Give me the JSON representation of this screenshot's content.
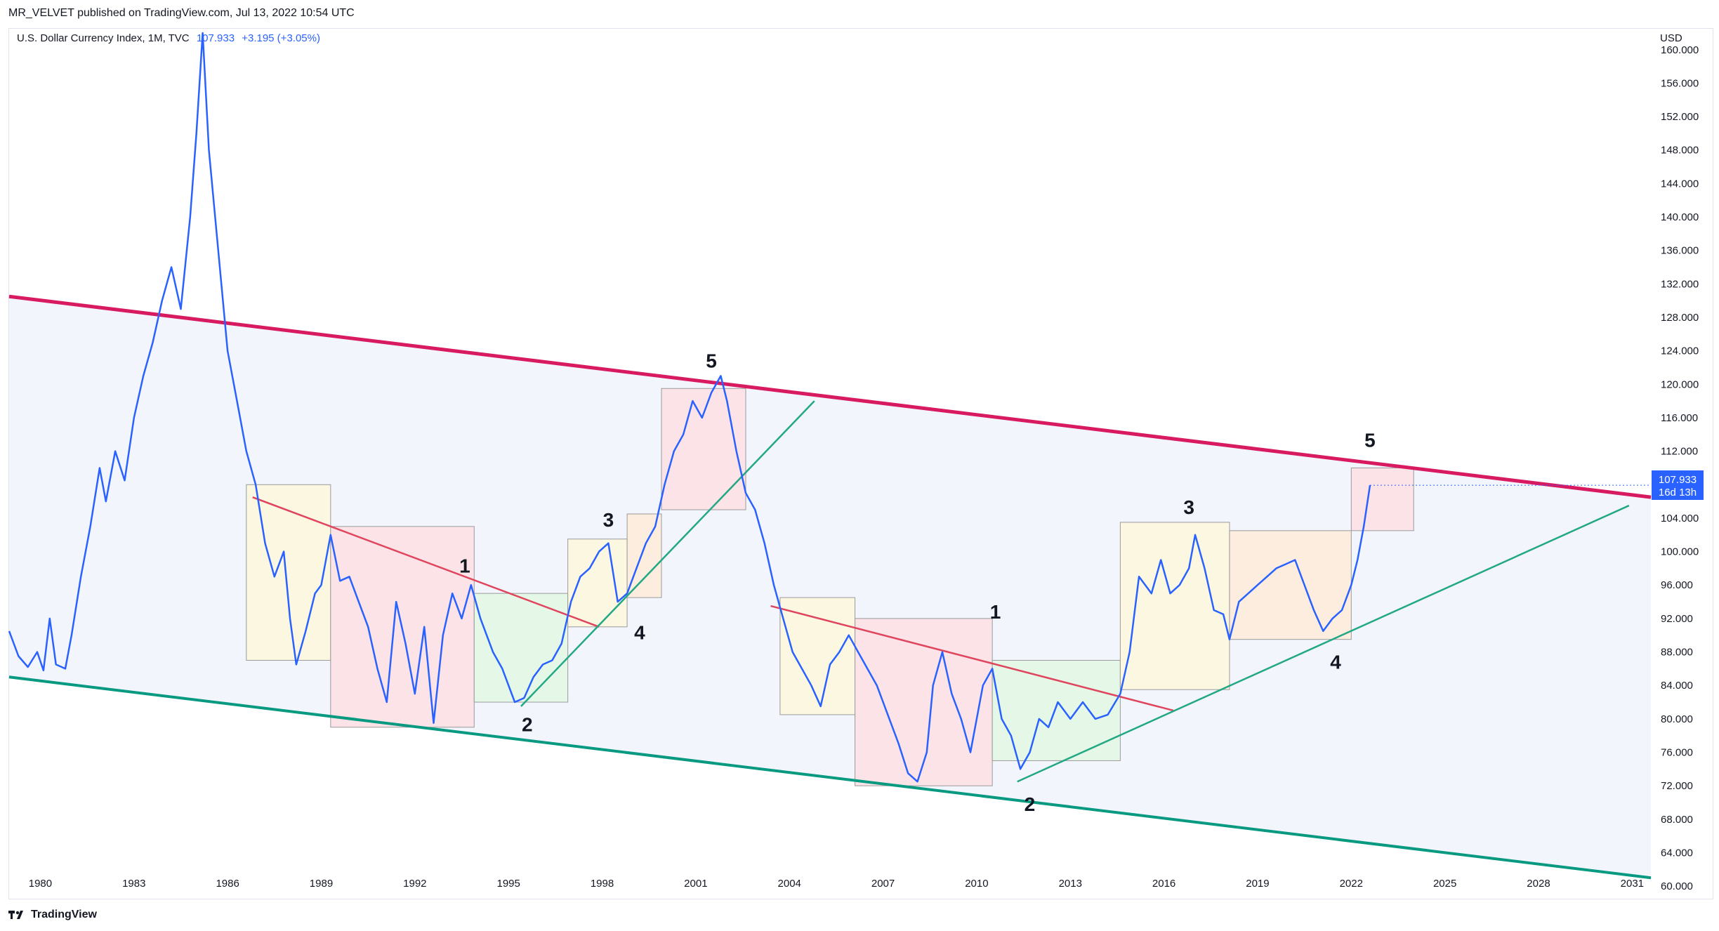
{
  "header": {
    "published_text": "MR_VELVET published on TradingView.com, Jul 13, 2022 10:54 UTC"
  },
  "legend": {
    "symbol": "U.S. Dollar Currency Index, 1M, TVC",
    "last": "107.933",
    "change": "+3.195 (+3.05%)"
  },
  "axis": {
    "currency": "USD"
  },
  "price_tag": {
    "value": "107.933",
    "countdown": "16d 13h"
  },
  "footer": {
    "brand": "TradingView"
  },
  "colors": {
    "line": "#2962ff",
    "upper_channel": "#d81b60",
    "lower_channel": "#089981",
    "sub_trend_red": "#e0455e",
    "sub_trend_green": "#22a884",
    "channel_fill": "#f3f5fd"
  },
  "chart_data": {
    "type": "line",
    "title": "U.S. Dollar Currency Index, 1M, TVC",
    "xlabel": "",
    "ylabel": "USD",
    "xlim": [
      1979.0,
      2031.6
    ],
    "ylim": [
      58.5,
      162.5
    ],
    "x_ticks": [
      "1980",
      "1983",
      "1986",
      "1989",
      "1992",
      "1995",
      "1998",
      "2001",
      "2004",
      "2007",
      "2010",
      "2013",
      "2016",
      "2019",
      "2022",
      "2025",
      "2028",
      "2031"
    ],
    "y_ticks": [
      "60.000",
      "64.000",
      "68.000",
      "72.000",
      "76.000",
      "80.000",
      "84.000",
      "88.000",
      "92.000",
      "96.000",
      "100.000",
      "104.000",
      "108.000",
      "112.000",
      "116.000",
      "120.000",
      "124.000",
      "128.000",
      "132.000",
      "136.000",
      "140.000",
      "144.000",
      "148.000",
      "152.000",
      "156.000",
      "160.000"
    ],
    "series": [
      {
        "name": "",
        "points": [
          [
            1979.0,
            90.5
          ],
          [
            1979.3,
            87.5
          ],
          [
            1979.6,
            86.2
          ],
          [
            1979.9,
            88.0
          ],
          [
            1980.1,
            85.8
          ],
          [
            1980.3,
            92.0
          ],
          [
            1980.5,
            86.5
          ],
          [
            1980.8,
            86.0
          ],
          [
            1981.0,
            90.0
          ],
          [
            1981.3,
            97.0
          ],
          [
            1981.6,
            103.0
          ],
          [
            1981.9,
            110.0
          ],
          [
            1982.1,
            106.0
          ],
          [
            1982.4,
            112.0
          ],
          [
            1982.7,
            108.5
          ],
          [
            1983.0,
            116.0
          ],
          [
            1983.3,
            121.0
          ],
          [
            1983.6,
            125.0
          ],
          [
            1983.9,
            130.0
          ],
          [
            1984.2,
            134.0
          ],
          [
            1984.5,
            129.0
          ],
          [
            1984.8,
            140.0
          ],
          [
            1985.0,
            150.0
          ],
          [
            1985.2,
            162.0
          ],
          [
            1985.4,
            148.0
          ],
          [
            1985.7,
            136.0
          ],
          [
            1986.0,
            124.0
          ],
          [
            1986.3,
            118.0
          ],
          [
            1986.6,
            112.0
          ],
          [
            1986.9,
            108.0
          ],
          [
            1987.2,
            101.0
          ],
          [
            1987.5,
            97.0
          ],
          [
            1987.8,
            100.0
          ],
          [
            1988.0,
            92.0
          ],
          [
            1988.2,
            86.5
          ],
          [
            1988.5,
            90.5
          ],
          [
            1988.8,
            95.0
          ],
          [
            1989.0,
            96.0
          ],
          [
            1989.3,
            102.0
          ],
          [
            1989.6,
            96.5
          ],
          [
            1989.9,
            97.0
          ],
          [
            1990.2,
            94.0
          ],
          [
            1990.5,
            91.0
          ],
          [
            1990.8,
            86.0
          ],
          [
            1991.1,
            82.0
          ],
          [
            1991.4,
            94.0
          ],
          [
            1991.7,
            89.0
          ],
          [
            1992.0,
            83.0
          ],
          [
            1992.3,
            91.0
          ],
          [
            1992.6,
            79.5
          ],
          [
            1992.9,
            90.0
          ],
          [
            1993.2,
            95.0
          ],
          [
            1993.5,
            92.0
          ],
          [
            1993.8,
            96.0
          ],
          [
            1994.1,
            92.0
          ],
          [
            1994.5,
            88.0
          ],
          [
            1994.8,
            86.0
          ],
          [
            1995.0,
            84.0
          ],
          [
            1995.2,
            82.0
          ],
          [
            1995.5,
            82.5
          ],
          [
            1995.8,
            85.0
          ],
          [
            1996.1,
            86.5
          ],
          [
            1996.4,
            87.0
          ],
          [
            1996.7,
            89.0
          ],
          [
            1997.0,
            94.0
          ],
          [
            1997.3,
            97.0
          ],
          [
            1997.6,
            98.0
          ],
          [
            1997.9,
            100.0
          ],
          [
            1998.2,
            101.0
          ],
          [
            1998.5,
            94.0
          ],
          [
            1998.8,
            95.0
          ],
          [
            1999.1,
            98.0
          ],
          [
            1999.4,
            101.0
          ],
          [
            1999.7,
            103.0
          ],
          [
            2000.0,
            108.0
          ],
          [
            2000.3,
            112.0
          ],
          [
            2000.6,
            114.0
          ],
          [
            2000.9,
            118.0
          ],
          [
            2001.2,
            116.0
          ],
          [
            2001.5,
            119.0
          ],
          [
            2001.8,
            121.0
          ],
          [
            2002.0,
            118.0
          ],
          [
            2002.3,
            112.0
          ],
          [
            2002.6,
            107.0
          ],
          [
            2002.9,
            105.0
          ],
          [
            2003.2,
            101.0
          ],
          [
            2003.5,
            96.0
          ],
          [
            2003.8,
            92.0
          ],
          [
            2004.1,
            88.0
          ],
          [
            2004.4,
            86.0
          ],
          [
            2004.7,
            84.0
          ],
          [
            2005.0,
            81.5
          ],
          [
            2005.3,
            86.5
          ],
          [
            2005.6,
            88.0
          ],
          [
            2005.9,
            90.0
          ],
          [
            2006.2,
            88.0
          ],
          [
            2006.5,
            86.0
          ],
          [
            2006.8,
            84.0
          ],
          [
            2007.2,
            80.0
          ],
          [
            2007.5,
            77.0
          ],
          [
            2007.8,
            73.5
          ],
          [
            2008.1,
            72.5
          ],
          [
            2008.4,
            76.0
          ],
          [
            2008.6,
            84.0
          ],
          [
            2008.9,
            88.0
          ],
          [
            2009.2,
            83.0
          ],
          [
            2009.5,
            80.0
          ],
          [
            2009.8,
            76.0
          ],
          [
            2010.2,
            84.0
          ],
          [
            2010.5,
            86.0
          ],
          [
            2010.8,
            80.0
          ],
          [
            2011.1,
            78.0
          ],
          [
            2011.4,
            74.0
          ],
          [
            2011.7,
            76.0
          ],
          [
            2012.0,
            80.0
          ],
          [
            2012.3,
            79.0
          ],
          [
            2012.6,
            82.0
          ],
          [
            2013.0,
            80.0
          ],
          [
            2013.4,
            82.0
          ],
          [
            2013.8,
            80.0
          ],
          [
            2014.2,
            80.5
          ],
          [
            2014.6,
            83.0
          ],
          [
            2014.9,
            88.0
          ],
          [
            2015.2,
            97.0
          ],
          [
            2015.6,
            95.0
          ],
          [
            2015.9,
            99.0
          ],
          [
            2016.2,
            95.0
          ],
          [
            2016.5,
            96.0
          ],
          [
            2016.8,
            98.0
          ],
          [
            2017.0,
            102.0
          ],
          [
            2017.3,
            98.0
          ],
          [
            2017.6,
            93.0
          ],
          [
            2017.9,
            92.5
          ],
          [
            2018.1,
            89.5
          ],
          [
            2018.4,
            94.0
          ],
          [
            2018.7,
            95.0
          ],
          [
            2019.0,
            96.0
          ],
          [
            2019.3,
            97.0
          ],
          [
            2019.6,
            98.0
          ],
          [
            2019.9,
            98.5
          ],
          [
            2020.2,
            99.0
          ],
          [
            2020.5,
            96.0
          ],
          [
            2020.8,
            93.0
          ],
          [
            2021.1,
            90.5
          ],
          [
            2021.4,
            92.0
          ],
          [
            2021.7,
            93.0
          ],
          [
            2022.0,
            96.0
          ],
          [
            2022.2,
            99.0
          ],
          [
            2022.4,
            103.0
          ],
          [
            2022.6,
            107.933
          ]
        ]
      }
    ],
    "annotations": {
      "channel_upper": [
        [
          1979.0,
          130.5
        ],
        [
          2031.6,
          106.5
        ]
      ],
      "channel_lower": [
        [
          1979.0,
          85.0
        ],
        [
          2031.6,
          61.0
        ]
      ],
      "trendlines_red": [
        [
          [
            1986.8,
            106.5
          ],
          [
            1997.9,
            91.0
          ]
        ],
        [
          [
            2003.4,
            93.5
          ],
          [
            2016.3,
            81.0
          ]
        ]
      ],
      "trendlines_green": [
        [
          [
            1995.4,
            81.5
          ],
          [
            2004.8,
            118.0
          ]
        ],
        [
          [
            2011.3,
            72.5
          ],
          [
            2030.9,
            105.5
          ]
        ]
      ],
      "boxes": [
        {
          "x0": 1986.6,
          "x1": 1989.3,
          "y0": 87.0,
          "y1": 108.0,
          "color": "#fbf7e1"
        },
        {
          "x0": 1989.3,
          "x1": 1993.9,
          "y0": 79.0,
          "y1": 103.0,
          "color": "#fbe3e8"
        },
        {
          "x0": 1993.9,
          "x1": 1996.9,
          "y0": 82.0,
          "y1": 95.0,
          "color": "#e5f7e6"
        },
        {
          "x0": 1996.9,
          "x1": 1998.8,
          "y0": 91.0,
          "y1": 101.5,
          "color": "#fbf7e1"
        },
        {
          "x0": 1998.8,
          "x1": 1999.9,
          "y0": 94.5,
          "y1": 104.5,
          "color": "#fcedde"
        },
        {
          "x0": 1999.9,
          "x1": 2002.6,
          "y0": 105.0,
          "y1": 119.5,
          "color": "#fbe3e8"
        },
        {
          "x0": 2003.7,
          "x1": 2006.1,
          "y0": 80.5,
          "y1": 94.5,
          "color": "#fbf7e1"
        },
        {
          "x0": 2006.1,
          "x1": 2010.5,
          "y0": 72.0,
          "y1": 92.0,
          "color": "#fbe3e8"
        },
        {
          "x0": 2010.5,
          "x1": 2014.6,
          "y0": 75.0,
          "y1": 87.0,
          "color": "#e5f7e6"
        },
        {
          "x0": 2014.6,
          "x1": 2018.1,
          "y0": 83.5,
          "y1": 103.5,
          "color": "#fbf7e1"
        },
        {
          "x0": 2018.1,
          "x1": 2022.0,
          "y0": 89.5,
          "y1": 102.5,
          "color": "#fcedde"
        },
        {
          "x0": 2022.0,
          "x1": 2024.0,
          "y0": 102.5,
          "y1": 110.0,
          "color": "#fbe3e8"
        }
      ],
      "wave_labels": [
        {
          "text": "1",
          "x": 1993.6,
          "y": 97.5
        },
        {
          "text": "2",
          "x": 1995.6,
          "y": 78.5
        },
        {
          "text": "3",
          "x": 1998.2,
          "y": 103.0
        },
        {
          "text": "4",
          "x": 1999.2,
          "y": 89.5
        },
        {
          "text": "5",
          "x": 2001.5,
          "y": 122.0
        },
        {
          "text": "1",
          "x": 2010.6,
          "y": 92.0
        },
        {
          "text": "2",
          "x": 2011.7,
          "y": 69.0
        },
        {
          "text": "3",
          "x": 2016.8,
          "y": 104.5
        },
        {
          "text": "4",
          "x": 2021.5,
          "y": 86.0
        },
        {
          "text": "5",
          "x": 2022.6,
          "y": 112.5
        }
      ]
    }
  }
}
